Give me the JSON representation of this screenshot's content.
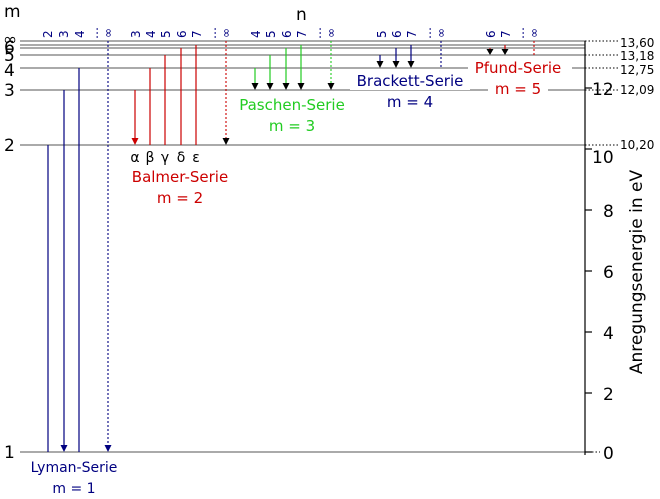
{
  "labels": {
    "m": "m",
    "n": "n",
    "y_axis": "Anregungsenergie in eV"
  },
  "left_levels": [
    "1",
    "2",
    "3",
    "4",
    "5",
    "6",
    "∞"
  ],
  "right_values": [
    "13,60",
    "13,18",
    "12,75",
    "12,09",
    "10,20"
  ],
  "axis_ticks": [
    "0",
    "2",
    "4",
    "6",
    "8",
    "10",
    "12"
  ],
  "greek": [
    "α",
    "β",
    "γ",
    "δ",
    "ε"
  ],
  "series": [
    {
      "name": "Lyman-Serie",
      "m": "m = 1",
      "color": "#000080",
      "n_labels": [
        "2",
        "3",
        "4",
        "…",
        "∞"
      ]
    },
    {
      "name": "Balmer-Serie",
      "m": "m = 2",
      "color": "#cc0000",
      "n_labels": [
        "3",
        "4",
        "5",
        "6",
        "7",
        "…",
        "∞"
      ]
    },
    {
      "name": "Paschen-Serie",
      "m": "m = 3",
      "color": "#22cc22",
      "n_labels": [
        "4",
        "5",
        "6",
        "7",
        "…",
        "∞"
      ]
    },
    {
      "name": "Brackett-Serie",
      "m": "m = 4",
      "color": "#000080",
      "n_labels": [
        "5",
        "6",
        "7",
        "…",
        "∞"
      ]
    },
    {
      "name": "Pfund-Serie",
      "m": "m = 5",
      "color": "#cc0000",
      "n_labels": [
        "6",
        "7",
        "…",
        "∞"
      ]
    }
  ]
}
